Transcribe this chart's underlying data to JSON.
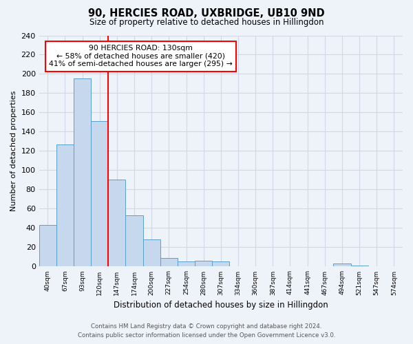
{
  "title": "90, HERCIES ROAD, UXBRIDGE, UB10 9ND",
  "subtitle": "Size of property relative to detached houses in Hillingdon",
  "xlabel": "Distribution of detached houses by size in Hillingdon",
  "ylabel": "Number of detached properties",
  "bar_labels": [
    "40sqm",
    "67sqm",
    "93sqm",
    "120sqm",
    "147sqm",
    "174sqm",
    "200sqm",
    "227sqm",
    "254sqm",
    "280sqm",
    "307sqm",
    "334sqm",
    "360sqm",
    "387sqm",
    "414sqm",
    "441sqm",
    "467sqm",
    "494sqm",
    "521sqm",
    "547sqm",
    "574sqm"
  ],
  "bar_values": [
    43,
    127,
    195,
    151,
    90,
    53,
    28,
    9,
    5,
    6,
    5,
    0,
    0,
    0,
    0,
    0,
    0,
    3,
    1,
    0,
    0
  ],
  "bar_color": "#c5d8ed",
  "bar_edge_color": "#5a9ec8",
  "vline_x": 3.5,
  "vline_color": "red",
  "annotation_title": "90 HERCIES ROAD: 130sqm",
  "annotation_line1": "← 58% of detached houses are smaller (420)",
  "annotation_line2": "41% of semi-detached houses are larger (295) →",
  "annotation_box_color": "white",
  "annotation_box_edge": "red",
  "ylim": [
    0,
    240
  ],
  "yticks": [
    0,
    20,
    40,
    60,
    80,
    100,
    120,
    140,
    160,
    180,
    200,
    220,
    240
  ],
  "footer_line1": "Contains HM Land Registry data © Crown copyright and database right 2024.",
  "footer_line2": "Contains public sector information licensed under the Open Government Licence v3.0.",
  "bg_color": "#eef3fa",
  "grid_color": "#d0d8e8"
}
